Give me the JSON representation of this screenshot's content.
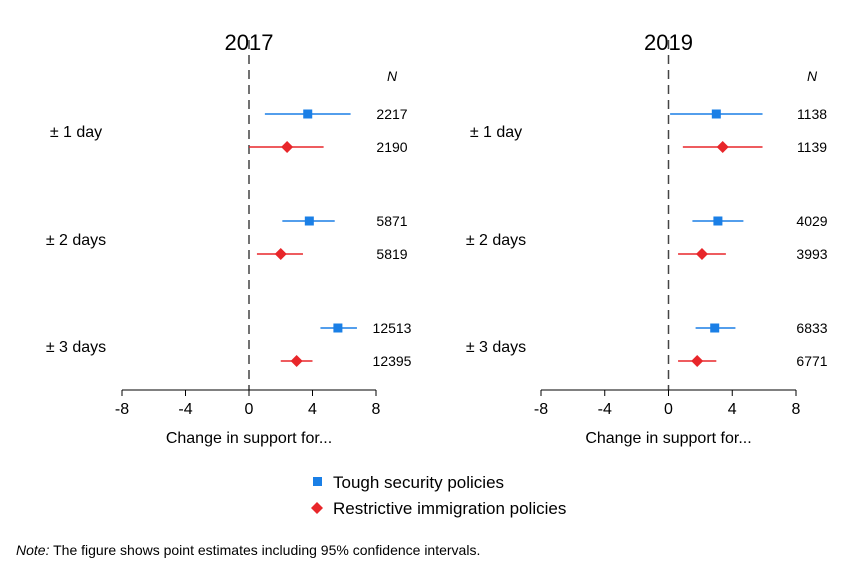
{
  "colors": {
    "security": "#1a7fe6",
    "immigration": "#e8262a"
  },
  "legend": [
    {
      "label": "Tough security policies",
      "marker": "square"
    },
    {
      "label": "Restrictive immigration policies",
      "marker": "diamond"
    }
  ],
  "note": {
    "prefix": "Note:",
    "text": " The figure shows point estimates including 95% confidence intervals."
  },
  "chart_data": [
    {
      "type": "scatter",
      "title": "2017",
      "xlabel": "Change in support for...",
      "xlim": [
        -8,
        8
      ],
      "xticks": [
        "-8",
        "-4",
        "0",
        "4",
        "8"
      ],
      "n_header": "N",
      "categories": [
        "± 1 day",
        "± 2 days",
        "± 3 days"
      ],
      "series": [
        {
          "name": "Tough security policies",
          "estimates": [
            3.7,
            3.8,
            5.6
          ],
          "ci_low": [
            1.0,
            2.1,
            4.5
          ],
          "ci_high": [
            6.4,
            5.4,
            6.8
          ],
          "n": [
            "2217",
            "5871",
            "12513"
          ]
        },
        {
          "name": "Restrictive immigration policies",
          "estimates": [
            2.4,
            2.0,
            3.0
          ],
          "ci_low": [
            0.0,
            0.5,
            2.0
          ],
          "ci_high": [
            4.7,
            3.4,
            4.0
          ],
          "n": [
            "2190",
            "5819",
            "12395"
          ]
        }
      ]
    },
    {
      "type": "scatter",
      "title": "2019",
      "xlabel": "Change in support for...",
      "xlim": [
        -8,
        8
      ],
      "xticks": [
        "-8",
        "-4",
        "0",
        "4",
        "8"
      ],
      "n_header": "N",
      "categories": [
        "± 1 day",
        "± 2 days",
        "± 3 days"
      ],
      "series": [
        {
          "name": "Tough security policies",
          "estimates": [
            3.0,
            3.1,
            2.9
          ],
          "ci_low": [
            0.1,
            1.5,
            1.7
          ],
          "ci_high": [
            5.9,
            4.7,
            4.2
          ],
          "n": [
            "1138",
            "4029",
            "6833"
          ]
        },
        {
          "name": "Restrictive immigration policies",
          "estimates": [
            3.4,
            2.1,
            1.8
          ],
          "ci_low": [
            0.9,
            0.6,
            0.6
          ],
          "ci_high": [
            5.9,
            3.6,
            3.0
          ],
          "n": [
            "1139",
            "3993",
            "6771"
          ]
        }
      ]
    }
  ]
}
